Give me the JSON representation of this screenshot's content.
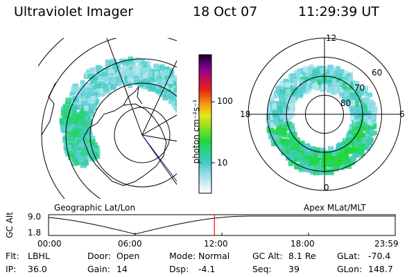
{
  "header": {
    "instrument": "Ultraviolet Imager",
    "date": "18 Oct 07",
    "time": "11:29:39 UT"
  },
  "geo_panel": {
    "label": "Geographic Lat/Lon"
  },
  "colorbar": {
    "unit_label": "photon cm⁻²s⁻¹",
    "ticks": [
      "100",
      "10"
    ],
    "scale": "log"
  },
  "apex_panel": {
    "label": "Apex MLat/MLT",
    "mlt_labels": {
      "top": "12",
      "left": "18",
      "right": "6",
      "bottom": "0"
    },
    "lat_labels": [
      "60",
      "70",
      "80"
    ]
  },
  "altitude_plot": {
    "ylabel": "GC Alt",
    "yticks": [
      "9.0",
      "1.8"
    ],
    "xticks": [
      "00:00",
      "06:00",
      "12:00",
      "18:00",
      "23:59"
    ],
    "current_time_marker": "11:29",
    "marker_color": "#ff0000"
  },
  "info": {
    "row1": [
      {
        "key": "Flt:",
        "value": "LBHL"
      },
      {
        "key": "Door:",
        "value": "Open"
      },
      {
        "key": "Mode:",
        "value": "Normal"
      },
      {
        "key": "GC Alt:",
        "value": "8.1 Re"
      },
      {
        "key": "GLat:",
        "value": "-70.4"
      }
    ],
    "row2": [
      {
        "key": "IP:",
        "value": "36.0"
      },
      {
        "key": "Gain:",
        "value": "14"
      },
      {
        "key": "Dsp:",
        "value": "-4.1"
      },
      {
        "key": "Seq:",
        "value": "39"
      },
      {
        "key": "GLon:",
        "value": "148.7"
      }
    ]
  }
}
